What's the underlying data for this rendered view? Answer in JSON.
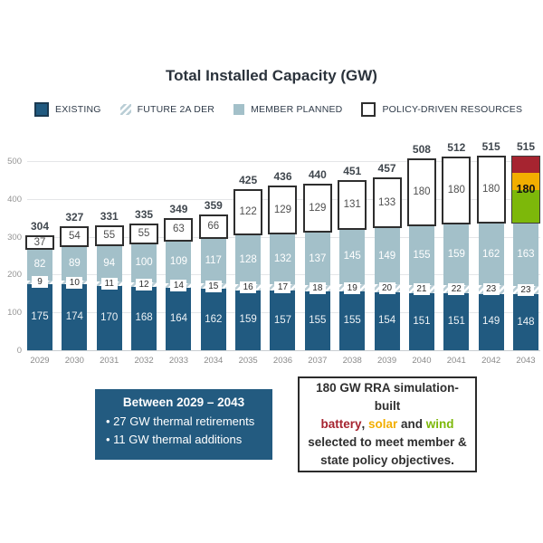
{
  "title": "Total Installed Capacity (GW)",
  "legend": {
    "items": [
      {
        "label": "EXISTING",
        "swatch": "existing"
      },
      {
        "label": "FUTURE 2A DER",
        "swatch": "hatch"
      },
      {
        "label": "MEMBER PLANNED",
        "swatch": "member"
      },
      {
        "label": "POLICY-DRIVEN RESOURCES",
        "swatch": "policy"
      }
    ]
  },
  "chart_data": {
    "type": "bar",
    "stacked": true,
    "title": "Total Installed Capacity (GW)",
    "xlabel": "",
    "ylabel": "",
    "ylim": [
      0,
      500
    ],
    "y_ticks": [
      0,
      100,
      200,
      300,
      400,
      500
    ],
    "grid": "horizontal",
    "legend_position": "top",
    "categories": [
      "2029",
      "2030",
      "2031",
      "2032",
      "2033",
      "2034",
      "2035",
      "2036",
      "2037",
      "2038",
      "2039",
      "2040",
      "2041",
      "2042",
      "2043"
    ],
    "series": [
      {
        "name": "EXISTING",
        "values": [
          175,
          174,
          170,
          168,
          164,
          162,
          159,
          157,
          155,
          155,
          154,
          151,
          151,
          149,
          148
        ]
      },
      {
        "name": "FUTURE 2A DER",
        "values": [
          9,
          10,
          11,
          12,
          14,
          15,
          16,
          17,
          18,
          19,
          20,
          21,
          22,
          23,
          23
        ]
      },
      {
        "name": "MEMBER PLANNED",
        "values": [
          82,
          89,
          94,
          100,
          109,
          117,
          128,
          132,
          137,
          145,
          149,
          155,
          159,
          162,
          163
        ]
      },
      {
        "name": "POLICY-DRIVEN RESOURCES",
        "values": [
          37,
          54,
          55,
          55,
          63,
          66,
          122,
          129,
          129,
          131,
          133,
          180,
          180,
          180,
          180
        ]
      }
    ],
    "totals": [
      304,
      327,
      331,
      335,
      349,
      359,
      425,
      436,
      440,
      451,
      457,
      508,
      512,
      515,
      515
    ],
    "final_year_policy_breakdown": {
      "year": "2043",
      "label": "180",
      "segments": [
        {
          "name": "battery",
          "value": 45
        },
        {
          "name": "solar",
          "value": 45
        },
        {
          "name": "wind",
          "value": 90
        }
      ]
    }
  },
  "colors": {
    "existing": "#215a80",
    "member_planned": "#a3c0c9",
    "hatch_stripe": "#b9cdd5",
    "policy_outline": "#2e2e2e",
    "battery": "#a62430",
    "solar": "#f2ae00",
    "wind": "#7db80a",
    "callout_bg": "#235b80"
  },
  "callout_left": {
    "heading": "Between 2029 – 2043",
    "bullets": [
      "27 GW thermal retirements",
      "11 GW thermal additions"
    ]
  },
  "callout_right": {
    "lines": [
      [
        {
          "t": "180 GW RRA simulation-built"
        }
      ],
      [
        {
          "t": "battery",
          "c": "battery"
        },
        {
          "t": ", "
        },
        {
          "t": "solar",
          "c": "solar"
        },
        {
          "t": " and "
        },
        {
          "t": "wind",
          "c": "wind"
        }
      ],
      [
        {
          "t": "selected to meet member &"
        }
      ],
      [
        {
          "t": "state policy objectives."
        }
      ]
    ]
  }
}
